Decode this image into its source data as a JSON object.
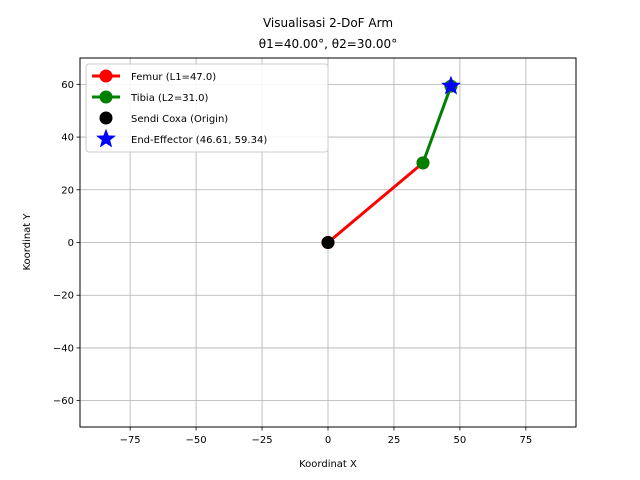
{
  "chart_data": {
    "type": "line",
    "title_line1": "Visualisasi 2-DoF Arm",
    "title_line2": "θ1=40.00°, θ2=30.00°",
    "xlabel": "Koordinat X",
    "ylabel": "Koordinat Y",
    "xlim": [
      -94,
      94
    ],
    "ylim": [
      -70,
      70
    ],
    "xticks": [
      -75,
      -50,
      -25,
      0,
      25,
      50,
      75
    ],
    "yticks": [
      -60,
      -40,
      -20,
      0,
      20,
      40,
      60
    ],
    "xtick_labels": [
      "−75",
      "−50",
      "−25",
      "0",
      "25",
      "50",
      "75"
    ],
    "ytick_labels": [
      "−60",
      "−40",
      "−20",
      "0",
      "20",
      "40",
      "60"
    ],
    "grid": true,
    "legend_position": "top-left",
    "series": [
      {
        "name": "Femur (L1=47.0)",
        "kind": "line",
        "color": "#ff0000",
        "marker": "circle",
        "x": [
          0,
          36.0
        ],
        "y": [
          0,
          30.21
        ]
      },
      {
        "name": "Tibia (L2=31.0)",
        "kind": "line",
        "color": "#008000",
        "marker": "circle",
        "x": [
          36.0,
          46.61
        ],
        "y": [
          30.21,
          59.34
        ]
      },
      {
        "name": "Sendi Coxa (Origin)",
        "kind": "point",
        "color": "#000000",
        "marker": "circle",
        "x": [
          0
        ],
        "y": [
          0
        ]
      },
      {
        "name": "End-Effector (46.61, 59.34)",
        "kind": "point",
        "color": "#0000ff",
        "marker": "star",
        "x": [
          46.61
        ],
        "y": [
          59.34
        ]
      }
    ]
  }
}
